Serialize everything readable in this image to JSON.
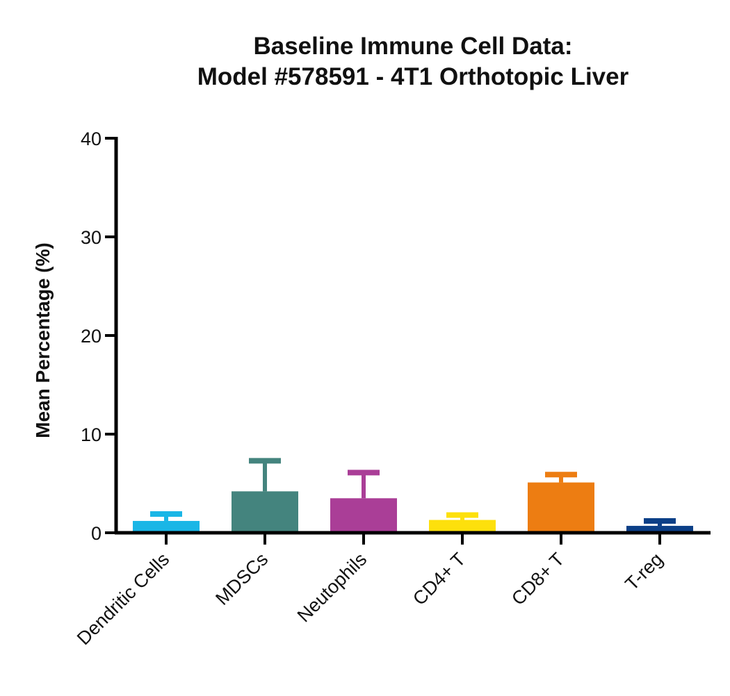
{
  "chart_data": {
    "type": "bar",
    "title_line1": "Baseline Immune  Cell Data:",
    "title_line2": "Model #578591 - 4T1 Orthotopic Liver",
    "title": "Baseline Immune  Cell Data: Model #578591 - 4T1 Orthotopic Liver",
    "xlabel": "",
    "ylabel": "Mean Percentage (%)",
    "ylim": [
      0,
      40
    ],
    "yticks": [
      0,
      10,
      20,
      30,
      40
    ],
    "grid": false,
    "legend": "none",
    "categories": [
      "Dendritic Cells",
      "MDSCs",
      "Neutophils",
      "CD4+ T",
      "CD8+ T",
      "T-reg"
    ],
    "values": [
      1.2,
      4.2,
      3.5,
      1.3,
      5.1,
      0.7
    ],
    "error_upper": [
      1.9,
      7.3,
      6.1,
      1.8,
      5.9,
      1.2
    ],
    "colors": [
      "#1ab6e6",
      "#44847e",
      "#aa3e97",
      "#fde00c",
      "#ed7d12",
      "#0b3f87"
    ]
  }
}
